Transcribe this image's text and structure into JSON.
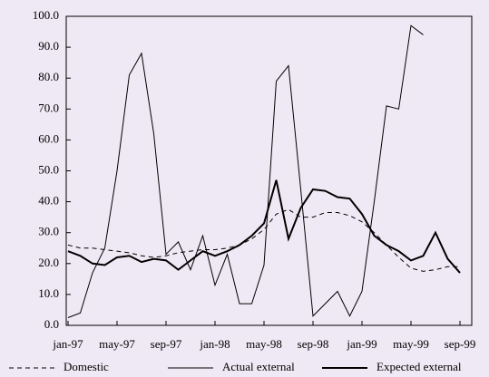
{
  "chart_data": {
    "type": "line",
    "categories": [
      "jan-97",
      null,
      null,
      null,
      "may-97",
      null,
      null,
      null,
      "sep-97",
      null,
      null,
      null,
      "jan-98",
      null,
      null,
      null,
      "may-98",
      null,
      null,
      null,
      "sep-98",
      null,
      null,
      null,
      "jan-99",
      null,
      null,
      null,
      "may-99",
      null,
      null,
      null,
      "sep-99"
    ],
    "series": [
      {
        "name": "Domestic",
        "color": "#000000",
        "style": "dashed",
        "width": 1,
        "values": [
          26,
          25,
          25,
          24.5,
          24,
          23.5,
          22.5,
          22,
          22.5,
          23.5,
          24,
          24.5,
          24.5,
          25,
          26,
          28,
          31,
          36,
          37.5,
          35,
          35,
          36.5,
          36.5,
          35.5,
          33.5,
          30,
          26,
          22,
          18.5,
          17.5,
          18,
          19,
          19
        ]
      },
      {
        "name": "Actual external",
        "color": "#000000",
        "style": "solid",
        "width": 1,
        "values": [
          2.5,
          4,
          17,
          25,
          50,
          81,
          88,
          62,
          23,
          27,
          18,
          29,
          13,
          23,
          7,
          7,
          19.5,
          79,
          84,
          44,
          3,
          7,
          11,
          3,
          11,
          40,
          71,
          70,
          97,
          94,
          null,
          null,
          null
        ]
      },
      {
        "name": "Expected external",
        "color": "#000000",
        "style": "solid",
        "width": 2,
        "values": [
          24,
          22.5,
          20,
          19.5,
          22,
          22.5,
          20.5,
          21.5,
          21,
          18,
          21,
          24,
          22.5,
          24,
          26,
          29,
          33,
          47,
          28,
          38,
          44,
          43.5,
          41.5,
          41,
          36,
          29,
          26,
          24,
          21,
          22.5,
          30,
          21.5,
          17
        ]
      }
    ],
    "ylim": [
      0,
      100
    ],
    "yticks": [
      {
        "value": 0,
        "label": "0.0"
      },
      {
        "value": 10,
        "label": "10.0"
      },
      {
        "value": 20,
        "label": "20.0"
      },
      {
        "value": 30,
        "label": "30.0"
      },
      {
        "value": 40,
        "label": "40.0"
      },
      {
        "value": 50,
        "label": "50.0"
      },
      {
        "value": 60,
        "label": "60.0"
      },
      {
        "value": 70,
        "label": "70.0"
      },
      {
        "value": 80,
        "label": "80.0"
      },
      {
        "value": 90,
        "label": "90.0"
      },
      {
        "value": 100,
        "label": "100.0"
      }
    ],
    "legend": "bottom"
  }
}
